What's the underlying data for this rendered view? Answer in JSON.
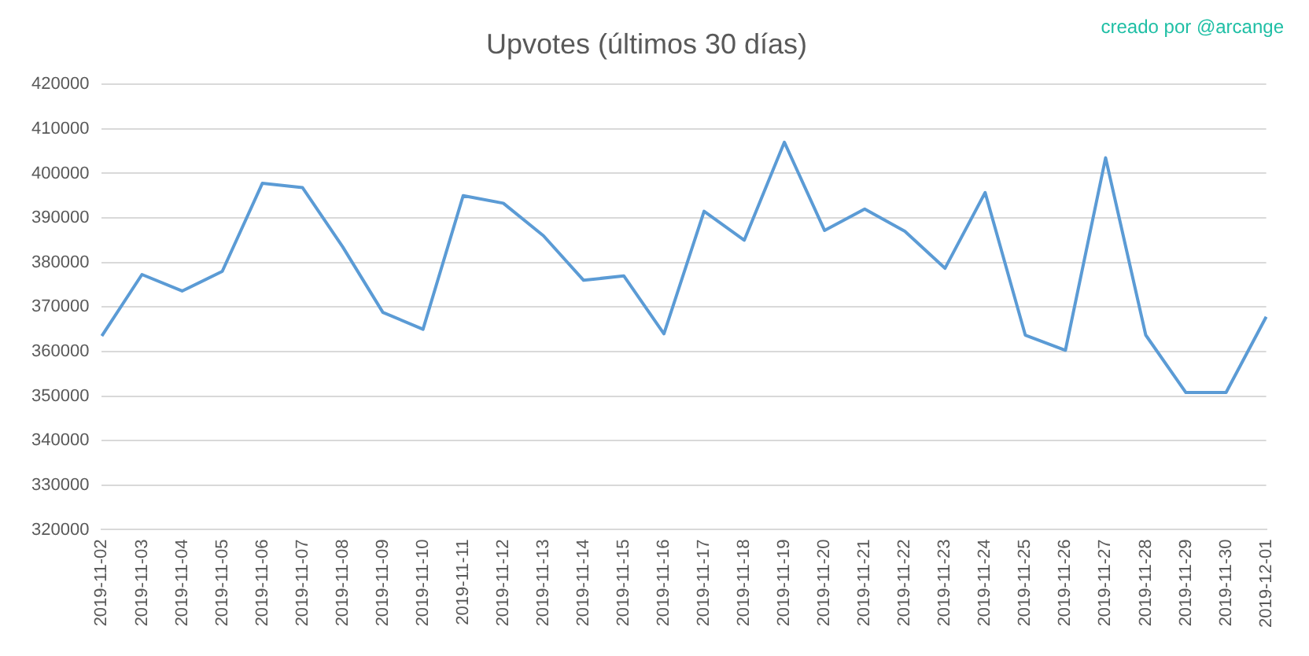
{
  "chart_data": {
    "type": "line",
    "title": "Upvotes (últimos 30 días)",
    "annotations": [
      "creado por @arcange"
    ],
    "categories": [
      "2019-11-02",
      "2019-11-03",
      "2019-11-04",
      "2019-11-05",
      "2019-11-06",
      "2019-11-07",
      "2019-11-08",
      "2019-11-09",
      "2019-11-10",
      "2019-11-11",
      "2019-11-12",
      "2019-11-13",
      "2019-11-14",
      "2019-11-15",
      "2019-11-16",
      "2019-11-17",
      "2019-11-18",
      "2019-11-19",
      "2019-11-20",
      "2019-11-21",
      "2019-11-22",
      "2019-11-23",
      "2019-11-24",
      "2019-11-25",
      "2019-11-26",
      "2019-11-27",
      "2019-11-28",
      "2019-11-29",
      "2019-11-30",
      "2019-12-01"
    ],
    "series": [
      {
        "color": "#5b9bd5",
        "values": [
          363500,
          377300,
          373600,
          378000,
          397800,
          396800,
          383500,
          368800,
          365000,
          395000,
          393300,
          386000,
          376000,
          377000,
          364000,
          391500,
          385000,
          407000,
          387200,
          392000,
          387000,
          378700,
          395700,
          363700,
          360300,
          403500,
          363700,
          350800,
          350800,
          367800
        ]
      }
    ],
    "ylim": [
      320000,
      420000
    ],
    "yticks": [
      320000,
      330000,
      340000,
      350000,
      360000,
      370000,
      380000,
      390000,
      400000,
      410000,
      420000
    ],
    "grid": "y",
    "legend": false,
    "marker": "none",
    "line_style": "solid"
  }
}
